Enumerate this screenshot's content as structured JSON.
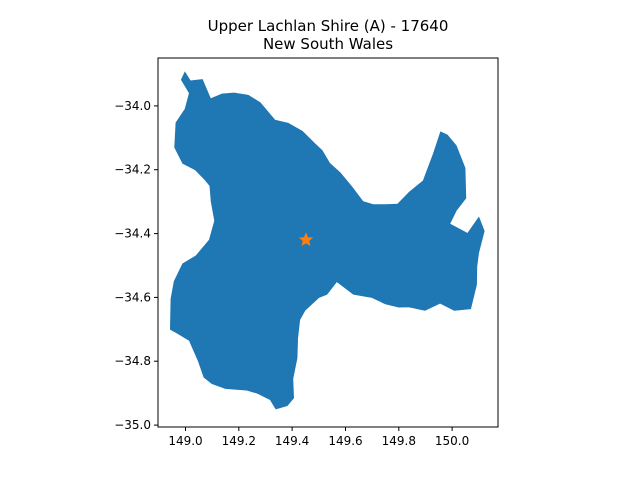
{
  "chart_data": {
    "type": "map",
    "title_lines": [
      "Upper Lachlan Shire (A) - 17640",
      "New South Wales"
    ],
    "region": {
      "name": "Upper Lachlan Shire (A)",
      "code": "17640",
      "state": "New South Wales",
      "fill_color": "#1f77b4",
      "outline": [
        [
          148.998,
          -33.895
        ],
        [
          149.018,
          -33.922
        ],
        [
          149.063,
          -33.918
        ],
        [
          149.094,
          -33.978
        ],
        [
          149.137,
          -33.963
        ],
        [
          149.182,
          -33.96
        ],
        [
          149.235,
          -33.967
        ],
        [
          149.28,
          -33.99
        ],
        [
          149.335,
          -34.045
        ],
        [
          149.385,
          -34.055
        ],
        [
          149.438,
          -34.08
        ],
        [
          149.484,
          -34.118
        ],
        [
          149.512,
          -34.14
        ],
        [
          149.54,
          -34.18
        ],
        [
          149.58,
          -34.21
        ],
        [
          149.625,
          -34.255
        ],
        [
          149.665,
          -34.3
        ],
        [
          149.705,
          -34.31
        ],
        [
          149.752,
          -34.31
        ],
        [
          149.796,
          -34.308
        ],
        [
          149.84,
          -34.27
        ],
        [
          149.892,
          -34.235
        ],
        [
          149.93,
          -34.15
        ],
        [
          149.957,
          -34.082
        ],
        [
          149.982,
          -34.092
        ],
        [
          150.015,
          -34.125
        ],
        [
          150.048,
          -34.195
        ],
        [
          150.051,
          -34.289
        ],
        [
          150.015,
          -34.328
        ],
        [
          149.99,
          -34.37
        ],
        [
          150.058,
          -34.4
        ],
        [
          150.1,
          -34.35
        ],
        [
          150.12,
          -34.392
        ],
        [
          150.099,
          -34.46
        ],
        [
          150.092,
          -34.503
        ],
        [
          150.091,
          -34.56
        ],
        [
          150.069,
          -34.635
        ],
        [
          150.008,
          -34.64
        ],
        [
          149.955,
          -34.618
        ],
        [
          149.898,
          -34.64
        ],
        [
          149.838,
          -34.629
        ],
        [
          149.8,
          -34.63
        ],
        [
          149.75,
          -34.62
        ],
        [
          149.7,
          -34.6
        ],
        [
          149.63,
          -34.59
        ],
        [
          149.567,
          -34.55
        ],
        [
          149.53,
          -34.59
        ],
        [
          149.5,
          -34.6
        ],
        [
          149.448,
          -34.64
        ],
        [
          149.428,
          -34.67
        ],
        [
          149.42,
          -34.728
        ],
        [
          149.418,
          -34.79
        ],
        [
          149.402,
          -34.855
        ],
        [
          149.405,
          -34.915
        ],
        [
          149.381,
          -34.939
        ],
        [
          149.339,
          -34.949
        ],
        [
          149.318,
          -34.92
        ],
        [
          149.27,
          -34.9
        ],
        [
          149.23,
          -34.89
        ],
        [
          149.15,
          -34.885
        ],
        [
          149.1,
          -34.87
        ],
        [
          149.07,
          -34.85
        ],
        [
          149.049,
          -34.8
        ],
        [
          149.015,
          -34.735
        ],
        [
          148.97,
          -34.712
        ],
        [
          148.944,
          -34.7
        ],
        [
          148.946,
          -34.605
        ],
        [
          148.958,
          -34.55
        ],
        [
          148.99,
          -34.495
        ],
        [
          149.04,
          -34.47
        ],
        [
          149.09,
          -34.42
        ],
        [
          149.11,
          -34.36
        ],
        [
          149.097,
          -34.3
        ],
        [
          149.092,
          -34.25
        ],
        [
          149.072,
          -34.23
        ],
        [
          149.037,
          -34.2
        ],
        [
          148.99,
          -34.18
        ],
        [
          148.96,
          -34.13
        ],
        [
          148.965,
          -34.053
        ],
        [
          148.999,
          -34.01
        ],
        [
          149.015,
          -33.96
        ],
        [
          148.985,
          -33.918
        ]
      ]
    },
    "marker": {
      "label": "centroid",
      "lon": 149.452,
      "lat": -34.42,
      "color": "#ff7f0e",
      "symbol": "star"
    },
    "axes": {
      "xlim": [
        148.897,
        150.172
      ],
      "ylim": [
        -35.006,
        -33.85
      ],
      "xticks": [
        149.0,
        149.2,
        149.4,
        149.6,
        149.8,
        150.0
      ],
      "xtick_labels": [
        "149.0",
        "149.2",
        "149.4",
        "149.6",
        "149.8",
        "150.0"
      ],
      "yticks": [
        -34.0,
        -34.2,
        -34.4,
        -34.6,
        -34.8,
        -35.0
      ],
      "ytick_labels": [
        "−34.0",
        "−34.2",
        "−34.4",
        "−34.6",
        "−34.8",
        "−35.0"
      ],
      "grid": false
    }
  }
}
